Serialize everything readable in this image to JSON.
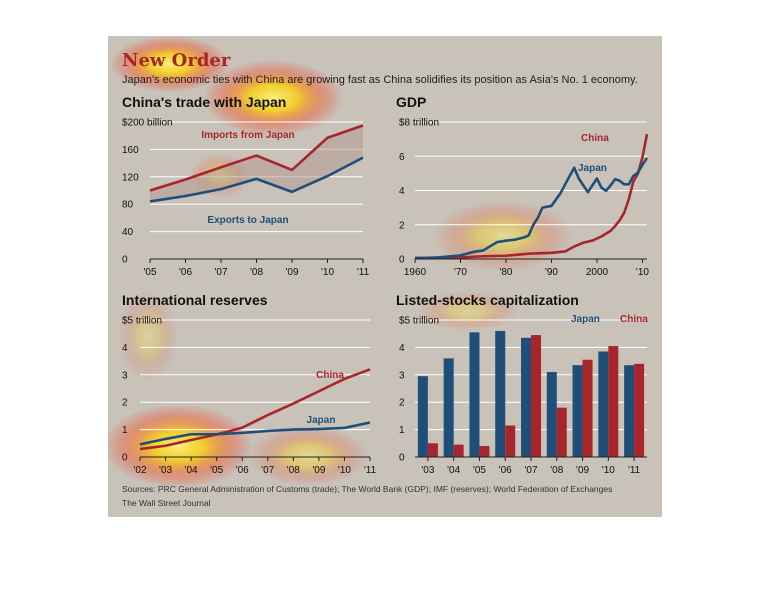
{
  "header": {
    "title": "New Order",
    "subtitle": "Japan's economic ties with China are growing fast as China solidifies its position as Asia's No. 1 economy."
  },
  "footer": {
    "sources": "Sources: PRC General Administration of Customs (trade); The World Bank (GDP); IMF (reserves); World Federation of Exchanges",
    "credit": "The Wall Street Journal"
  },
  "colors": {
    "china": "#a8262b",
    "japan": "#1f4f79",
    "grid": "#ffffff",
    "bar_japan": "#1f4f79",
    "bar_china": "#a8262b"
  },
  "chart_data": [
    {
      "type": "line",
      "title": "China's trade with Japan",
      "unit_label": "$200 billion",
      "yticks": [
        0,
        40,
        80,
        120,
        160,
        200
      ],
      "ytick_labels": [
        "0",
        "40",
        "80",
        "120",
        "160",
        "$200 billion"
      ],
      "ylim": [
        0,
        200
      ],
      "categories": [
        "'05",
        "'06",
        "'07",
        "'08",
        "'09",
        "'10",
        "'11"
      ],
      "series": [
        {
          "name": "Imports from Japan",
          "color": "#a8262b",
          "values": [
            100,
            116,
            134,
            151,
            130,
            177,
            195
          ]
        },
        {
          "name": "Exports to Japan",
          "color": "#1f4f79",
          "values": [
            84,
            92,
            102,
            117,
            98,
            121,
            148
          ]
        }
      ]
    },
    {
      "type": "line",
      "title": "GDP",
      "unit_label": "$8 trillion",
      "yticks": [
        0,
        2,
        4,
        6,
        8
      ],
      "ytick_labels": [
        "0",
        "2",
        "4",
        "6",
        "$8 trillion"
      ],
      "ylim": [
        0,
        8
      ],
      "xlim": [
        1960,
        2011
      ],
      "xticks": [
        1960,
        1970,
        1980,
        1990,
        2000,
        2010
      ],
      "xtick_labels": [
        "1960",
        "'70",
        "'80",
        "'90",
        "2000",
        "'10"
      ],
      "series": [
        {
          "name": "China",
          "color": "#a8262b",
          "x": [
            1960,
            1965,
            1970,
            1975,
            1980,
            1985,
            1990,
            1993,
            1995,
            1997,
            1999,
            2001,
            2003,
            2004,
            2005,
            2006,
            2007,
            2008,
            2009,
            2010,
            2011
          ],
          "values": [
            0.06,
            0.07,
            0.09,
            0.16,
            0.19,
            0.31,
            0.36,
            0.44,
            0.73,
            0.95,
            1.08,
            1.32,
            1.64,
            1.93,
            2.26,
            2.71,
            3.49,
            4.52,
            4.99,
            5.93,
            7.3
          ]
        },
        {
          "name": "Japan",
          "color": "#1f4f79",
          "x": [
            1960,
            1965,
            1970,
            1973,
            1975,
            1978,
            1980,
            1982,
            1984,
            1985,
            1986,
            1987,
            1988,
            1990,
            1992,
            1994,
            1995,
            1996,
            1998,
            2000,
            2001,
            2002,
            2003,
            2004,
            2005,
            2006,
            2007,
            2008,
            2009,
            2010,
            2011
          ],
          "values": [
            0.04,
            0.09,
            0.21,
            0.42,
            0.5,
            0.98,
            1.07,
            1.13,
            1.26,
            1.38,
            2.0,
            2.4,
            3.0,
            3.1,
            3.85,
            4.85,
            5.33,
            4.7,
            3.9,
            4.7,
            4.16,
            3.98,
            4.3,
            4.66,
            4.57,
            4.36,
            4.36,
            4.85,
            5.04,
            5.5,
            5.9
          ]
        }
      ]
    },
    {
      "type": "line",
      "title": "International reserves",
      "unit_label": "$5 trillion",
      "yticks": [
        0,
        1,
        2,
        3,
        4,
        5
      ],
      "ytick_labels": [
        "0",
        "1",
        "2",
        "3",
        "4",
        "$5 trillion"
      ],
      "ylim": [
        0,
        5
      ],
      "categories": [
        "'02",
        "'03",
        "'04",
        "'05",
        "'06",
        "'07",
        "'08",
        "'09",
        "'10",
        "'11"
      ],
      "series": [
        {
          "name": "China",
          "color": "#a8262b",
          "values": [
            0.29,
            0.41,
            0.62,
            0.82,
            1.07,
            1.53,
            1.95,
            2.4,
            2.85,
            3.2
          ]
        },
        {
          "name": "Japan",
          "color": "#1f4f79",
          "values": [
            0.46,
            0.66,
            0.83,
            0.83,
            0.88,
            0.95,
            1.0,
            1.02,
            1.06,
            1.26
          ]
        }
      ]
    },
    {
      "type": "bar",
      "title": "Listed-stocks capitalization",
      "unit_label": "$5 trillion",
      "yticks": [
        0,
        1,
        2,
        3,
        4,
        5
      ],
      "ytick_labels": [
        "0",
        "1",
        "2",
        "3",
        "4",
        "$5 trillion"
      ],
      "ylim": [
        0,
        5
      ],
      "categories": [
        "'03",
        "'04",
        "'05",
        "'06",
        "'07",
        "'08",
        "'09",
        "'10",
        "'11"
      ],
      "series": [
        {
          "name": "Japan",
          "color": "#1f4f79",
          "values": [
            2.95,
            3.6,
            4.55,
            4.6,
            4.35,
            3.1,
            3.35,
            3.85,
            3.35
          ]
        },
        {
          "name": "China",
          "color": "#a8262b",
          "values": [
            0.5,
            0.45,
            0.4,
            1.15,
            4.45,
            1.8,
            3.55,
            4.05,
            3.4
          ]
        }
      ]
    }
  ]
}
